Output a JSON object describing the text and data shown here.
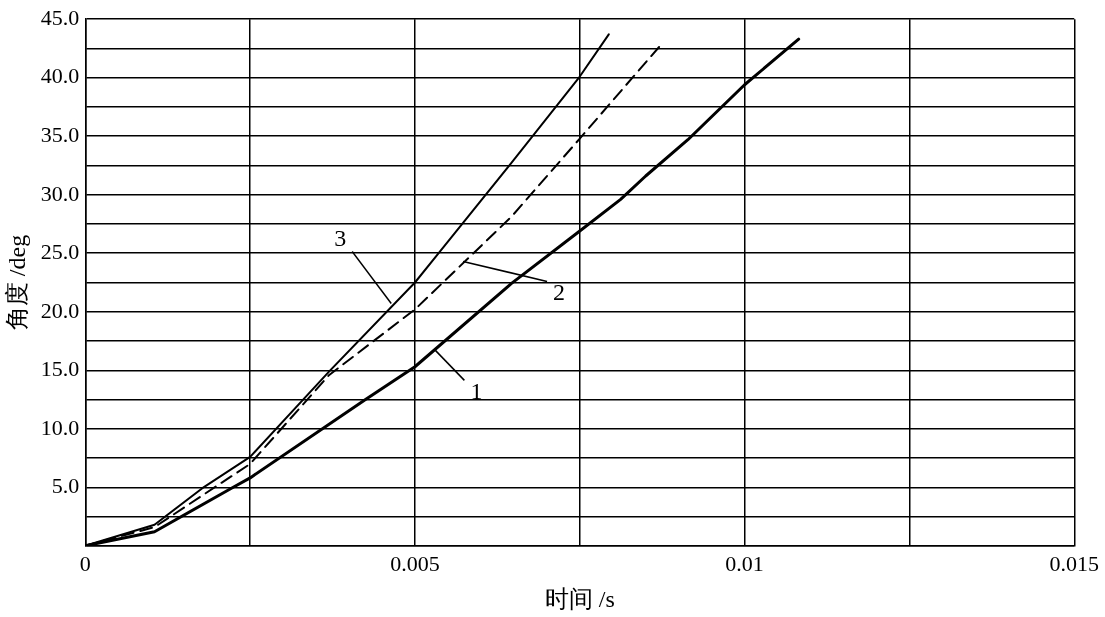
{
  "chart_data": {
    "type": "line",
    "xlabel": "时间 /s",
    "ylabel": "角度 /deg",
    "xlim": [
      0,
      0.015
    ],
    "xticks": [
      0,
      {
        "value": 0.0025,
        "label": null
      },
      0.005,
      {
        "value": 0.0075,
        "label": null
      },
      0.01,
      {
        "value": 0.0125,
        "label": null
      },
      0.015
    ],
    "ylim": [
      0,
      45
    ],
    "yticks": [
      {
        "value": 0,
        "label": null
      },
      {
        "value": 2.5,
        "label": null
      },
      {
        "value": 5,
        "label": "5.0"
      },
      {
        "value": 7.5,
        "label": null
      },
      {
        "value": 10,
        "label": "10.0"
      },
      {
        "value": 12.5,
        "label": null
      },
      {
        "value": 15,
        "label": "15.0"
      },
      {
        "value": 17.5,
        "label": null
      },
      {
        "value": 20,
        "label": "20.0"
      },
      {
        "value": 22.5,
        "label": null
      },
      {
        "value": 25,
        "label": "25.0"
      },
      {
        "value": 27.5,
        "label": null
      },
      {
        "value": 30,
        "label": "30.0"
      },
      {
        "value": 32.5,
        "label": null
      },
      {
        "value": 35,
        "label": "35.0"
      },
      {
        "value": 37.5,
        "label": null
      },
      {
        "value": 40,
        "label": "40.0"
      },
      {
        "value": 42.5,
        "label": null
      },
      {
        "value": 45,
        "label": "45.0"
      }
    ],
    "grid": true,
    "legend": false,
    "marker": "none",
    "series": [
      {
        "color": "#000000",
        "line_style": "solid",
        "x": [
          0,
          0.00105,
          0.00221,
          0.0025,
          0.00425,
          0.005,
          0.00646,
          0.0075,
          0.00812,
          0.0085,
          0.00914,
          0.01,
          0.01082
        ],
        "values": [
          0,
          1.2,
          4.9,
          5.8,
          12.5,
          15.3,
          22.4,
          26.9,
          29.6,
          31.6,
          34.7,
          39.4,
          43.3
        ]
      },
      {
        "color": "#000000",
        "line_style": "dashed",
        "x": [
          0,
          0.00105,
          0.0025,
          0.0037,
          0.005,
          0.00646,
          0.0075,
          0.00876
        ],
        "values": [
          0,
          1.6,
          7.0,
          14.6,
          20.2,
          28.1,
          34.8,
          43.0
        ]
      },
      {
        "color": "#000000",
        "line_style": "solid",
        "x": [
          0,
          0.00105,
          0.00177,
          0.0025,
          0.0037,
          0.005,
          0.00646,
          0.0075,
          0.00794
        ],
        "values": [
          0,
          1.8,
          4.9,
          7.6,
          14.9,
          22.5,
          32.7,
          40.1,
          43.7
        ]
      }
    ],
    "annotations": [
      {
        "text": "1",
        "x": 0.00531,
        "y": 16.7
      },
      {
        "text": "2",
        "x": 0.00573,
        "y": 24.3
      },
      {
        "text": "3",
        "x": 0.00464,
        "y": 20.7
      }
    ]
  }
}
